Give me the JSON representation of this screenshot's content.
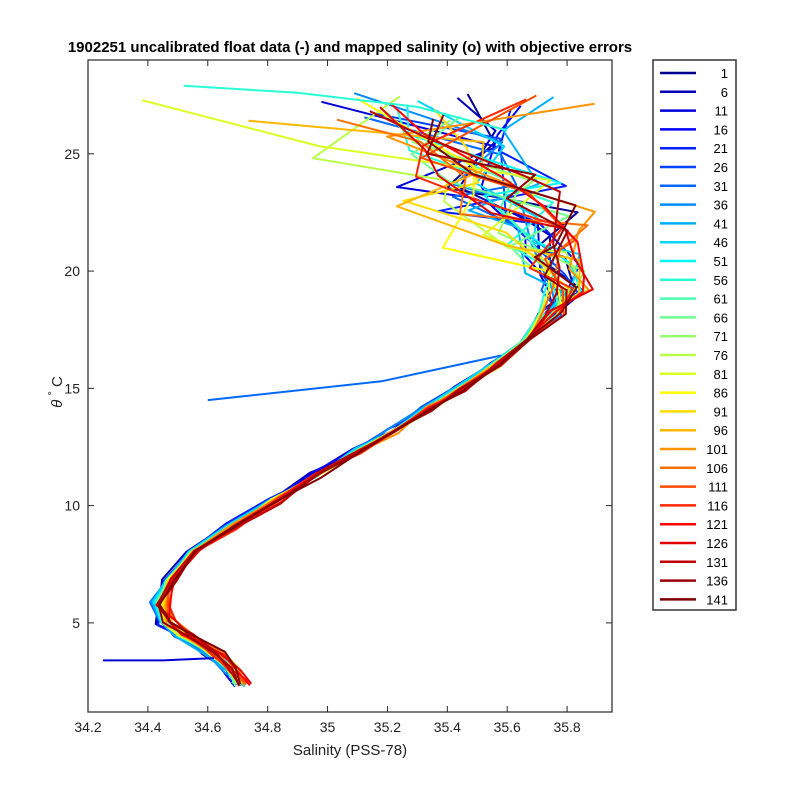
{
  "chart_data": {
    "type": "line",
    "title": "1902251 uncalibrated float data (-) and mapped salinity (o) with objective errors",
    "xlabel": "Salinity (PSS-78)",
    "ylabel_symbol": "θ",
    "ylabel_degree": "°",
    "ylabel_unit": "C",
    "xlim": [
      34.2,
      35.95
    ],
    "ylim": [
      1.2,
      29
    ],
    "xticks": [
      34.2,
      34.4,
      34.6,
      34.8,
      35,
      35.2,
      35.4,
      35.6,
      35.8
    ],
    "xtick_labels": [
      "34.2",
      "34.4",
      "34.6",
      "34.8",
      "35",
      "35.2",
      "35.4",
      "35.6",
      "35.8"
    ],
    "yticks": [
      5,
      10,
      15,
      20,
      25
    ],
    "ytick_labels": [
      "5",
      "10",
      "15",
      "20",
      "25"
    ],
    "grid": false,
    "legend_position": "outside-right",
    "colormap": "jet",
    "legend": [
      {
        "label": "1",
        "color": "#00008f"
      },
      {
        "label": "6",
        "color": "#0000b4"
      },
      {
        "label": "11",
        "color": "#0000d8"
      },
      {
        "label": "16",
        "color": "#0000fc"
      },
      {
        "label": "21",
        "color": "#0020ff"
      },
      {
        "label": "26",
        "color": "#0044ff"
      },
      {
        "label": "31",
        "color": "#0068ff"
      },
      {
        "label": "36",
        "color": "#008cff"
      },
      {
        "label": "41",
        "color": "#00b0ff"
      },
      {
        "label": "46",
        "color": "#00d4ff"
      },
      {
        "label": "51",
        "color": "#04f8fb"
      },
      {
        "label": "56",
        "color": "#28ffd7"
      },
      {
        "label": "61",
        "color": "#4cffb3"
      },
      {
        "label": "66",
        "color": "#70ff8f"
      },
      {
        "label": "71",
        "color": "#94ff6b"
      },
      {
        "label": "76",
        "color": "#b8ff47"
      },
      {
        "label": "81",
        "color": "#dcff23"
      },
      {
        "label": "86",
        "color": "#ffff00"
      },
      {
        "label": "91",
        "color": "#ffdc00"
      },
      {
        "label": "96",
        "color": "#ffb800"
      },
      {
        "label": "101",
        "color": "#ff9400"
      },
      {
        "label": "106",
        "color": "#ff7000"
      },
      {
        "label": "111",
        "color": "#ff4c00"
      },
      {
        "label": "116",
        "color": "#ff2800"
      },
      {
        "label": "121",
        "color": "#ff0400"
      },
      {
        "label": "126",
        "color": "#e00000"
      },
      {
        "label": "131",
        "color": "#bc0000"
      },
      {
        "label": "136",
        "color": "#980000"
      },
      {
        "label": "141",
        "color": "#800000"
      }
    ],
    "profile_template": {
      "note_free": true,
      "salinity": [
        34.71,
        34.68,
        34.62,
        34.52,
        34.46,
        34.44,
        34.47,
        34.55,
        34.68,
        34.82,
        34.96,
        35.1,
        35.22,
        35.33,
        35.44,
        35.56,
        35.66,
        35.75,
        35.8,
        35.78,
        35.74,
        35.7,
        35.66,
        35.6,
        35.55
      ],
      "theta": [
        2.4,
        3.0,
        3.7,
        4.4,
        5.0,
        5.8,
        6.8,
        8.0,
        9.1,
        10.2,
        11.3,
        12.3,
        13.2,
        14.1,
        15.0,
        16.0,
        17.0,
        18.2,
        19.2,
        20.3,
        21.5,
        22.8,
        24.0,
        25.4,
        27.0
      ]
    },
    "anomalies": [
      {
        "salinity": [
          34.6,
          35.18,
          35.58
        ],
        "theta": [
          14.5,
          15.3,
          16.4
        ],
        "color": "#0068ff"
      },
      {
        "salinity": [
          34.25,
          34.45,
          34.62
        ],
        "theta": [
          3.4,
          3.4,
          3.5
        ],
        "color": "#0000d8"
      },
      {
        "salinity": [
          34.52,
          34.9,
          35.3,
          35.6
        ],
        "theta": [
          27.9,
          27.6,
          27.0,
          26.0
        ],
        "color": "#28ffd7"
      }
    ]
  }
}
